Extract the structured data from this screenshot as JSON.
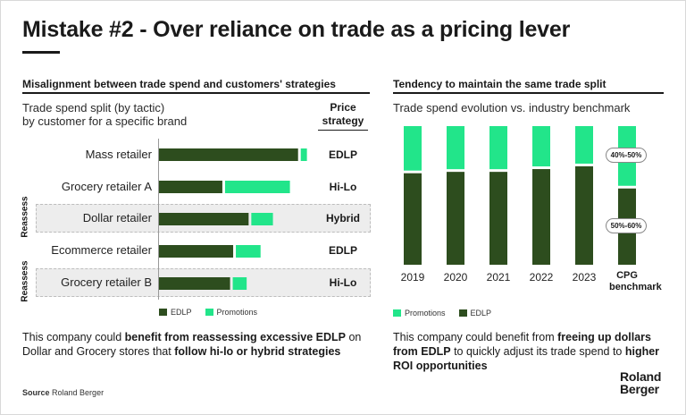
{
  "title": "Mistake #2 - Over reliance on trade as a pricing lever",
  "left_section": {
    "heading": "Misalignment between trade spend and customers' strategies",
    "subtitle_line1": "Trade spend split (by tactic)",
    "subtitle_line2": "by customer for a specific brand",
    "price_header_line1": "Price",
    "price_header_line2": "strategy",
    "reassess_label": "Reassess",
    "note_plain1": "This company could ",
    "note_bold1": "benefit from reassessing excessive EDLP",
    "note_plain2": " on Dollar and Grocery stores that ",
    "note_bold2": "follow hi-lo or hybrid strategies"
  },
  "right_section": {
    "heading": "Tendency to maintain the same trade split",
    "subtitle": "Trade spend evolution vs. industry benchmark",
    "benchmark_label": "CPG benchmark",
    "range_upper": "40%-50%",
    "range_lower": "50%-60%",
    "note_plain1": "This company could benefit from ",
    "note_bold1": "freeing up dollars from EDLP",
    "note_plain2": " to quickly adjust its trade spend to ",
    "note_bold2": "higher ROI opportunities"
  },
  "source_label": "Source",
  "source_value": "Roland Berger",
  "logo_line1": "Roland",
  "logo_line2": "Berger",
  "colors": {
    "edlp": "#2d4d1e",
    "promotions": "#22e58a",
    "band": "#ededed",
    "text": "#1a1a1a"
  },
  "chart_data": [
    {
      "type": "bar",
      "orientation": "horizontal",
      "stacked": true,
      "categories": [
        "Mass retailer",
        "Grocery retailer A",
        "Dollar retailer",
        "Ecommerce retailer",
        "Grocery retailer B"
      ],
      "series": [
        {
          "name": "EDLP",
          "values": [
            90,
            41,
            58,
            48,
            46
          ]
        },
        {
          "name": "Promotions",
          "values": [
            4,
            42,
            14,
            16,
            9
          ]
        }
      ],
      "price_strategy": [
        "EDLP",
        "Hi-Lo",
        "Hybrid",
        "EDLP",
        "Hi-Lo"
      ],
      "highlighted": [
        "Dollar retailer",
        "Grocery retailer B"
      ],
      "legend_position": "bottom"
    },
    {
      "type": "bar",
      "stacked": true,
      "percent": true,
      "categories": [
        "2019",
        "2020",
        "2021",
        "2022",
        "2023",
        "CPG benchmark"
      ],
      "series": [
        {
          "name": "EDLP",
          "values": [
            66,
            67,
            67,
            69,
            71,
            55
          ]
        },
        {
          "name": "Promotions",
          "values": [
            34,
            33,
            33,
            31,
            29,
            45
          ]
        }
      ],
      "ylim": [
        0,
        100
      ],
      "legend_position": "bottom"
    }
  ]
}
